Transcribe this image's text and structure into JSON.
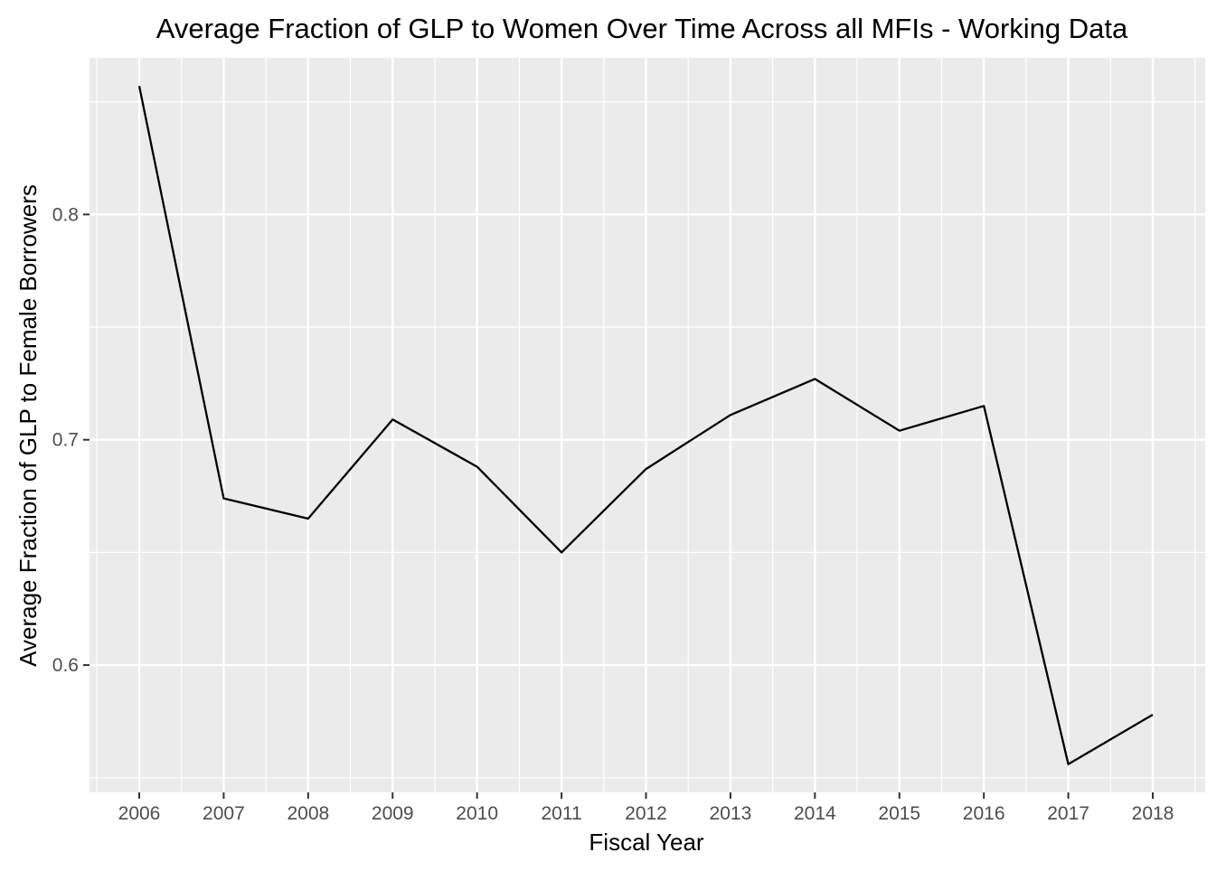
{
  "chart_data": {
    "type": "line",
    "title": "Average Fraction of GLP to Women Over Time Across all MFIs - Working Data",
    "xlabel": "Fiscal Year",
    "ylabel": "Average Fraction of GLP to Female Borrowers",
    "x": [
      "2006",
      "2007",
      "2008",
      "2009",
      "2010",
      "2011",
      "2012",
      "2013",
      "2014",
      "2015",
      "2016",
      "2017",
      "2018"
    ],
    "series": [
      {
        "values": [
          0.857,
          0.674,
          0.665,
          0.709,
          0.688,
          0.65,
          0.687,
          0.711,
          0.727,
          0.704,
          0.715,
          0.556,
          0.578
        ]
      }
    ],
    "yticks": [
      "0.6",
      "0.7",
      "0.8"
    ],
    "ytick_values": [
      0.6,
      0.7,
      0.8
    ],
    "ylim": [
      0.5435,
      0.8695
    ],
    "grid": true,
    "colors": {
      "panel_bg": "#ebebeb",
      "grid": "#ffffff",
      "line": "#000000",
      "tick_text": "#4d4d4d"
    }
  }
}
